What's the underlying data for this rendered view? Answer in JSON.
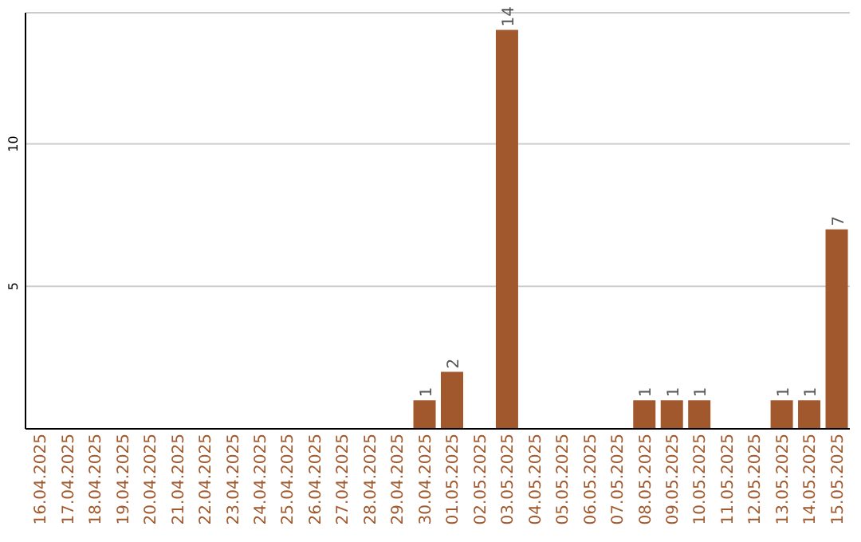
{
  "chart_data": {
    "type": "bar",
    "categories": [
      "16.04.2025",
      "17.04.2025",
      "18.04.2025",
      "19.04.2025",
      "20.04.2025",
      "21.04.2025",
      "22.04.2025",
      "23.04.2025",
      "24.04.2025",
      "25.04.2025",
      "26.04.2025",
      "27.04.2025",
      "28.04.2025",
      "29.04.2025",
      "30.04.2025",
      "01.05.2025",
      "02.05.2025",
      "03.05.2025",
      "04.05.2025",
      "05.05.2025",
      "06.05.2025",
      "07.05.2025",
      "08.05.2025",
      "09.05.2025",
      "10.05.2025",
      "11.05.2025",
      "12.05.2025",
      "13.05.2025",
      "14.05.2025",
      "15.05.2025"
    ],
    "values": [
      0,
      0,
      0,
      0,
      0,
      0,
      0,
      0,
      0,
      0,
      0,
      0,
      0,
      0,
      1,
      2,
      0,
      14,
      0,
      0,
      0,
      0,
      1,
      1,
      1,
      0,
      0,
      1,
      1,
      7
    ],
    "value_labels": [
      null,
      null,
      null,
      null,
      null,
      null,
      null,
      null,
      null,
      null,
      null,
      null,
      null,
      null,
      "1",
      "2",
      null,
      "14",
      null,
      null,
      null,
      null,
      "1",
      "1",
      "1",
      null,
      null,
      "1",
      "1",
      "7"
    ],
    "color": "#a0582c",
    "ylim": [
      0,
      14.6
    ],
    "yticks": [
      5,
      10
    ],
    "grid": "y"
  }
}
